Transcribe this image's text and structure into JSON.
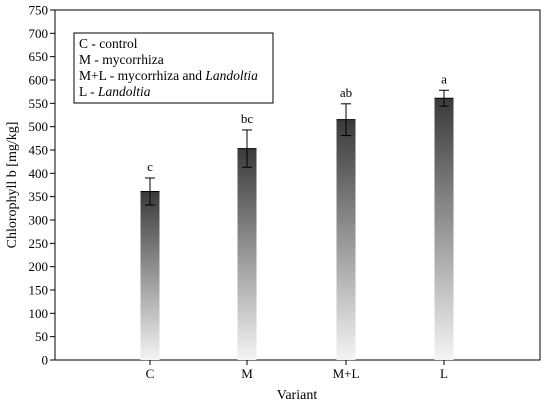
{
  "chart_data": {
    "type": "bar",
    "xlabel": "Variant",
    "ylabel": "Chlorophyll b [mg/kg]",
    "ylim": [
      0,
      750
    ],
    "yticks": [
      0,
      50,
      100,
      150,
      200,
      250,
      300,
      350,
      400,
      450,
      500,
      550,
      600,
      650,
      700,
      750
    ],
    "categories": [
      "C",
      "M",
      "M+L",
      "L"
    ],
    "values": [
      361,
      453,
      515,
      561
    ],
    "errors": [
      29,
      40,
      34,
      17
    ],
    "significance": [
      "c",
      "bc",
      "ab",
      "a"
    ],
    "bar_style": "vertical gradient dark top to light bottom",
    "legend": {
      "placement": "top-left",
      "items": [
        {
          "plain": "C - control",
          "italic": ""
        },
        {
          "plain": "M - mycorrhiza",
          "italic": ""
        },
        {
          "plain": "M+L - mycorrhiza and ",
          "italic": "Landoltia"
        },
        {
          "plain": "L - ",
          "italic": "Landoltia"
        }
      ]
    }
  }
}
